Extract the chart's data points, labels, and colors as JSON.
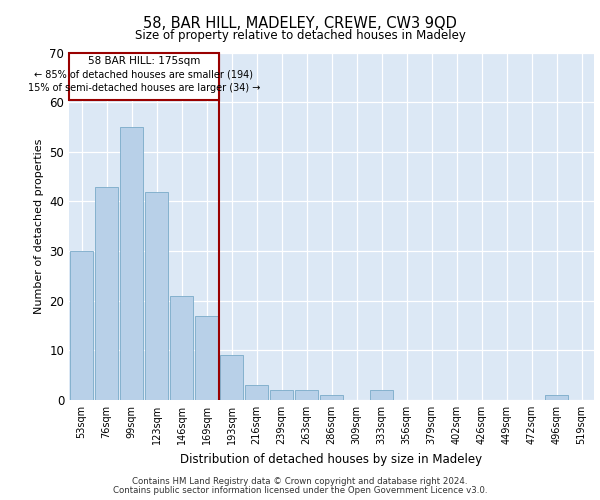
{
  "title": "58, BAR HILL, MADELEY, CREWE, CW3 9QD",
  "subtitle": "Size of property relative to detached houses in Madeley",
  "xlabel": "Distribution of detached houses by size in Madeley",
  "ylabel": "Number of detached properties",
  "bar_labels": [
    "53sqm",
    "76sqm",
    "99sqm",
    "123sqm",
    "146sqm",
    "169sqm",
    "193sqm",
    "216sqm",
    "239sqm",
    "263sqm",
    "286sqm",
    "309sqm",
    "333sqm",
    "356sqm",
    "379sqm",
    "402sqm",
    "426sqm",
    "449sqm",
    "472sqm",
    "496sqm",
    "519sqm"
  ],
  "bar_values": [
    30,
    43,
    55,
    42,
    21,
    17,
    9,
    3,
    2,
    2,
    1,
    0,
    2,
    0,
    0,
    0,
    0,
    0,
    0,
    1,
    0
  ],
  "bar_color": "#b8d0e8",
  "bar_edge_color": "#7aaac8",
  "vline_color": "#990000",
  "annotation_title": "58 BAR HILL: 175sqm",
  "annotation_line1": "← 85% of detached houses are smaller (194)",
  "annotation_line2": "15% of semi-detached houses are larger (34) →",
  "annotation_box_color": "#990000",
  "ylim": [
    0,
    70
  ],
  "yticks": [
    0,
    10,
    20,
    30,
    40,
    50,
    60,
    70
  ],
  "footer_line1": "Contains HM Land Registry data © Crown copyright and database right 2024.",
  "footer_line2": "Contains public sector information licensed under the Open Government Licence v3.0.",
  "plot_bg_color": "#dce8f5"
}
